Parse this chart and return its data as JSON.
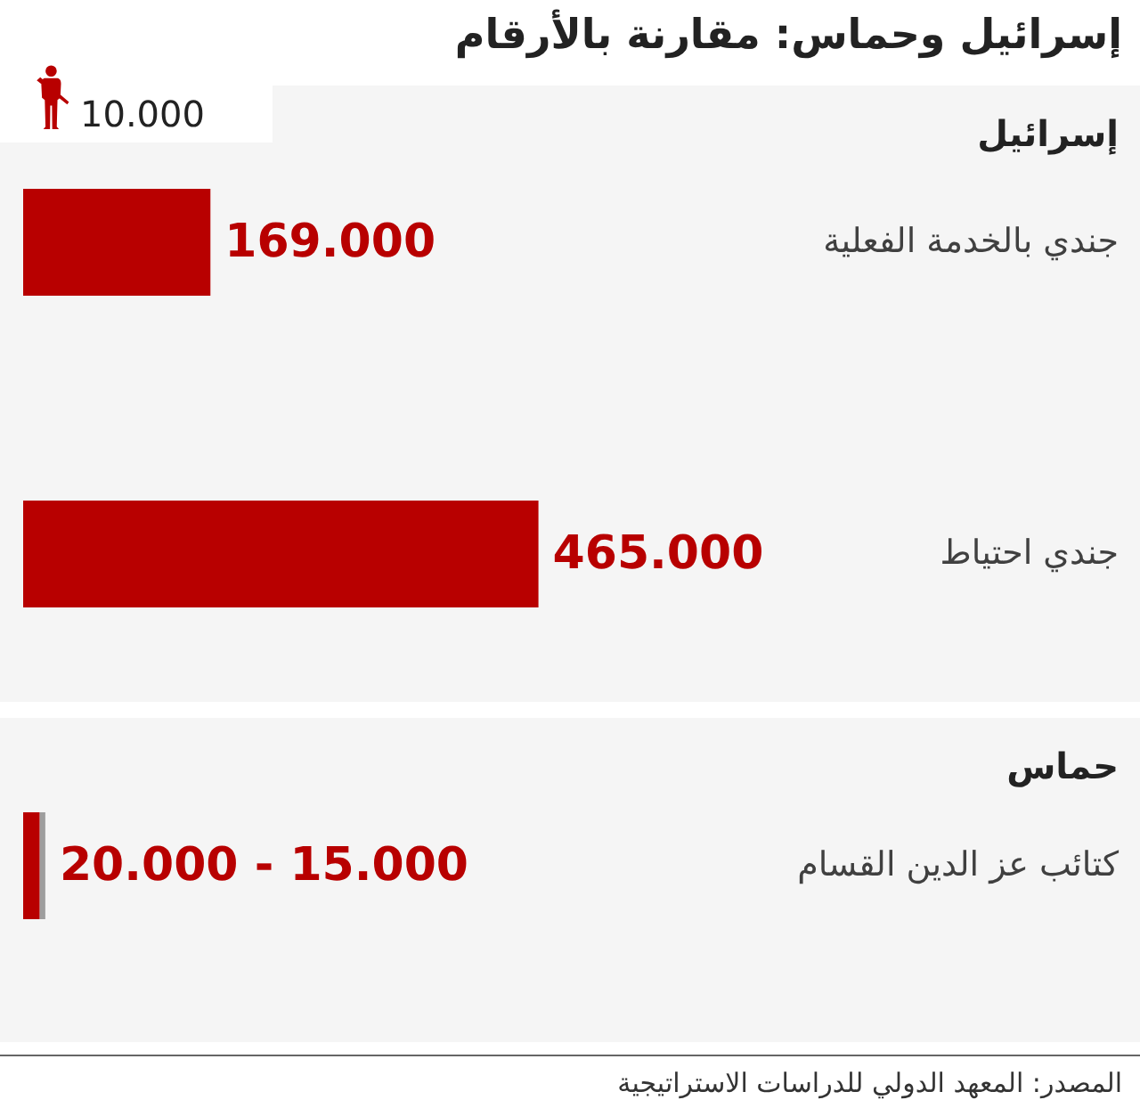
{
  "chart_data": {
    "type": "bar",
    "orientation": "horizontal",
    "stacked": true,
    "title": "إسرائيل وحماس: مقارنة بالأرقام",
    "categories": [
      "جندي بالخدمة الفعلية",
      "جندي احتياط",
      "كتائب عز الدين القسام"
    ],
    "series": [
      {
        "color": "#b80000",
        "values": [
          169000,
          465000,
          15000
        ],
        "value_labels": [
          "169.000",
          "465.000",
          "15.000 - 20.000"
        ]
      },
      {
        "color": "#9e9e9e",
        "values": [
          null,
          null,
          5000
        ]
      }
    ],
    "bands": [
      {
        "axis": "y",
        "from": "جندي بالخدمة الفعلية",
        "to": "جندي احتياط",
        "label": "إسرائيل",
        "color": "#f5f5f5"
      },
      {
        "axis": "y",
        "from": "كتائب عز الدين القسام",
        "to": "كتائب عز الدين القسام",
        "label": "حماس",
        "color": "#f5f5f5"
      }
    ],
    "annotations": [
      "10.000",
      "المصدر: المعهد الدولي للدراسات الاستراتيجية"
    ]
  }
}
